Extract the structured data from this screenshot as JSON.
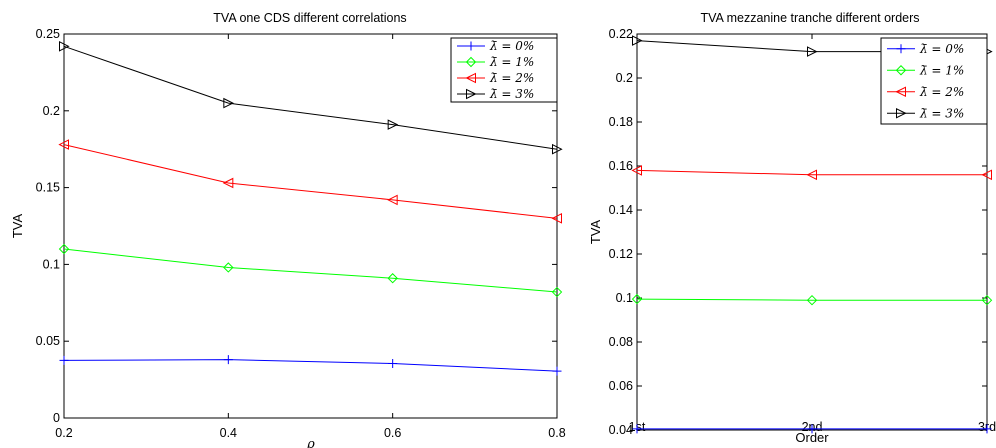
{
  "chart_data": [
    {
      "type": "line",
      "title": "TVA one CDS different correlations",
      "xlabel": "ρ",
      "ylabel": "TVA",
      "x": [
        0.2,
        0.4,
        0.6,
        0.8
      ],
      "x_tick_labels": [
        "0.2",
        "0.4",
        "0.6",
        "0.8"
      ],
      "xlim": [
        0.2,
        0.8
      ],
      "ylim": [
        0,
        0.25
      ],
      "y_ticks": [
        0,
        0.05,
        0.1,
        0.15,
        0.2,
        0.25
      ],
      "y_tick_labels": [
        "0",
        "0.05",
        "0.1",
        "0.15",
        "0.2",
        "0.25"
      ],
      "grid": false,
      "legend_position": "top-right",
      "series": [
        {
          "name": "λ̄ = 0%",
          "color": "#0000ff",
          "marker": "plus",
          "values": [
            0.0375,
            0.038,
            0.0355,
            0.0305
          ]
        },
        {
          "name": "λ̄ = 1%",
          "color": "#00ff00",
          "marker": "diamond",
          "values": [
            0.11,
            0.098,
            0.091,
            0.082
          ]
        },
        {
          "name": "λ̄ = 2%",
          "color": "#ff0000",
          "marker": "triangle-left",
          "values": [
            0.178,
            0.153,
            0.142,
            0.13
          ]
        },
        {
          "name": "λ̄ = 3%",
          "color": "#000000",
          "marker": "triangle-right",
          "values": [
            0.242,
            0.205,
            0.191,
            0.175
          ]
        }
      ]
    },
    {
      "type": "line",
      "title": "TVA mezzanine tranche different orders",
      "xlabel": "Order",
      "ylabel": "TVA",
      "categories": [
        "1st",
        "2nd",
        "3rd"
      ],
      "ylim": [
        0.04,
        0.22
      ],
      "y_ticks": [
        0.04,
        0.06,
        0.08,
        0.1,
        0.12,
        0.14,
        0.16,
        0.18,
        0.2,
        0.22
      ],
      "y_tick_labels": [
        "0.04",
        "0.06",
        "0.08",
        "0.1",
        "0.12",
        "0.14",
        "0.16",
        "0.18",
        "0.2",
        "0.22"
      ],
      "grid": false,
      "legend_position": "top-right",
      "series": [
        {
          "name": "λ̄ = 0%",
          "color": "#0000ff",
          "marker": "plus",
          "values": [
            0.0405,
            0.0405,
            0.0405
          ]
        },
        {
          "name": "λ̄ = 1%",
          "color": "#00ff00",
          "marker": "diamond",
          "values": [
            0.0995,
            0.099,
            0.099
          ]
        },
        {
          "name": "λ̄ = 2%",
          "color": "#ff0000",
          "marker": "triangle-left",
          "values": [
            0.158,
            0.156,
            0.156
          ]
        },
        {
          "name": "λ̄ = 3%",
          "color": "#000000",
          "marker": "triangle-right",
          "values": [
            0.217,
            0.212,
            0.212
          ]
        }
      ]
    }
  ]
}
